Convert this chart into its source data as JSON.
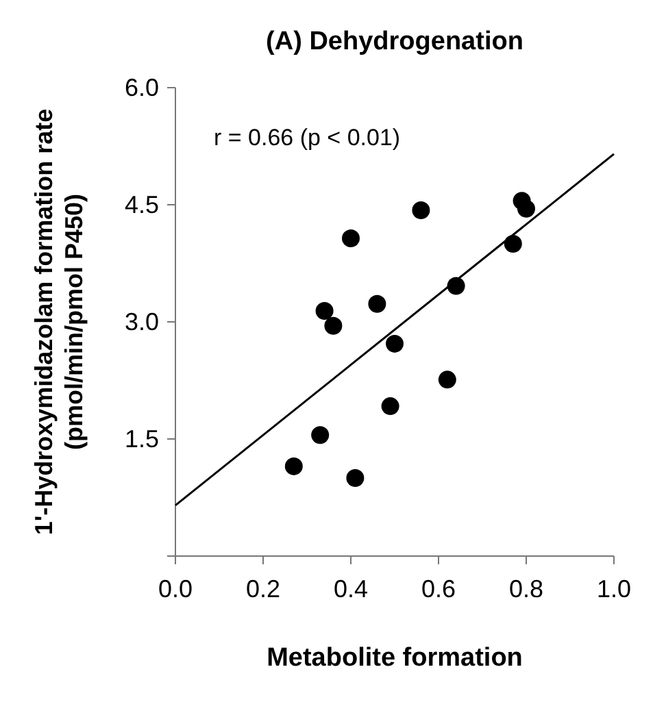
{
  "chart_data": {
    "type": "scatter",
    "title": "(A) Dehydrogenation",
    "xlabel": "Metabolite formation",
    "ylabel": "1'-Hydroxymidazolam formation rate (pmol/min/pmol P450)",
    "x": [
      0.27,
      0.41,
      0.33,
      0.49,
      0.62,
      0.5,
      0.36,
      0.34,
      0.46,
      0.64,
      0.4,
      0.56,
      0.77,
      0.79,
      0.8
    ],
    "series": [
      {
        "color": "#000000",
        "marker": "circle",
        "values": [
          1.15,
          1.0,
          1.55,
          1.92,
          2.26,
          2.72,
          2.95,
          3.14,
          3.23,
          3.46,
          4.07,
          4.43,
          4.0,
          4.55,
          4.45
        ]
      },
      {
        "type": "line",
        "marker": "none",
        "color": "#000000",
        "x": [
          0,
          1
        ],
        "values": [
          0.65,
          5.15
        ]
      }
    ],
    "xlim": [
      0,
      1
    ],
    "xticks": [
      {
        "value": 0,
        "label": "0.0"
      },
      0.2,
      0.4,
      0.6,
      0.8,
      {
        "value": 1,
        "label": "1.0"
      }
    ],
    "ylim": [
      0,
      6
    ],
    "yticks": [
      {
        "value": 0,
        "label": null
      },
      1.5,
      {
        "value": 3,
        "label": "3.0"
      },
      4.5,
      {
        "value": 6,
        "label": "6.0"
      }
    ],
    "annotations": [
      "r = 0.66 (p < 0.01)"
    ],
    "grid": false
  }
}
